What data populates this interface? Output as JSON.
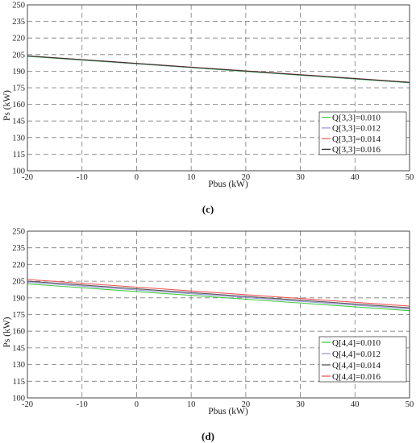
{
  "chart_data": [
    {
      "type": "line",
      "panel_label": "(c)",
      "xlabel": "Pbus (kW)",
      "ylabel": "Ps (kW)",
      "xlim": [
        -20,
        50
      ],
      "ylim": [
        100,
        250
      ],
      "x_ticks": [
        "-20",
        "-10",
        "0",
        "10",
        "20",
        "30",
        "40",
        "50"
      ],
      "y_ticks": [
        "100",
        "115",
        "130",
        "145",
        "160",
        "175",
        "190",
        "205",
        "220",
        "235",
        "250"
      ],
      "grid": true,
      "legend_position": "bottom-right",
      "x": [
        -20,
        50
      ],
      "series": [
        {
          "name": "Q[3,3]=0.010",
          "color": "#44cc44",
          "values": [
            203.5,
            179.5
          ]
        },
        {
          "name": "Q[3,3]=0.012",
          "color": "#9999dd",
          "values": [
            203.7,
            179.8
          ]
        },
        {
          "name": "Q[3,3]=0.014",
          "color": "#e06666",
          "values": [
            203.9,
            180.1
          ]
        },
        {
          "name": "Q[3,3]=0.016",
          "color": "#333333",
          "values": [
            203.8,
            179.9
          ]
        }
      ]
    },
    {
      "type": "line",
      "panel_label": "(d)",
      "xlabel": "Pbus (kW)",
      "ylabel": "Ps (kW)",
      "xlim": [
        -20,
        50
      ],
      "ylim": [
        100,
        250
      ],
      "x_ticks": [
        "-20",
        "-10",
        "0",
        "10",
        "20",
        "30",
        "40",
        "50"
      ],
      "y_ticks": [
        "100",
        "115",
        "130",
        "145",
        "160",
        "175",
        "190",
        "205",
        "220",
        "235",
        "250"
      ],
      "grid": true,
      "legend_position": "bottom-right",
      "x": [
        -20,
        50
      ],
      "series": [
        {
          "name": "Q[4,4]=0.010",
          "color": "#44cc44",
          "values": [
            202.5,
            178.5
          ]
        },
        {
          "name": "Q[4,4]=0.012",
          "color": "#9999dd",
          "values": [
            204.0,
            180.0
          ]
        },
        {
          "name": "Q[4,4]=0.014",
          "color": "#555555",
          "values": [
            205.0,
            181.0
          ]
        },
        {
          "name": "Q[4,4]=0.016",
          "color": "#ee5555",
          "values": [
            206.5,
            182.5
          ]
        }
      ]
    }
  ]
}
